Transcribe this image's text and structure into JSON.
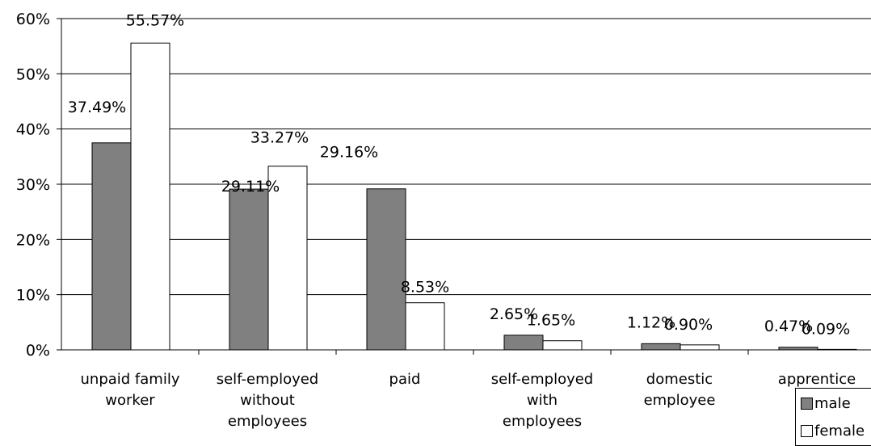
{
  "chart_data": {
    "type": "bar",
    "title": "",
    "xlabel": "",
    "ylabel": "",
    "ylim": [
      0,
      60
    ],
    "yticks": [
      "0%",
      "10%",
      "20%",
      "30%",
      "40%",
      "50%",
      "60%"
    ],
    "grid": true,
    "legend_position": "bottom-right",
    "categories": [
      [
        "unpaid family",
        "worker"
      ],
      [
        "self-employed",
        "without",
        "employees"
      ],
      [
        "paid"
      ],
      [
        "self-employed",
        "with",
        "employees"
      ],
      [
        "domestic",
        "employee"
      ],
      [
        "apprentice"
      ]
    ],
    "series": [
      {
        "name": "male",
        "color": "#808080",
        "values": [
          37.49,
          29.11,
          29.16,
          2.65,
          1.12,
          0.47
        ],
        "labels": [
          "37.49%",
          "29.11%",
          "29.16%",
          "2.65%",
          "1.12%",
          "0.47%"
        ]
      },
      {
        "name": "female",
        "color": "#ffffff",
        "values": [
          55.57,
          33.27,
          8.53,
          1.65,
          0.9,
          0.09
        ],
        "labels": [
          "55.57%",
          "33.27%",
          "8.53%",
          "1.65%",
          "0.90%",
          "0.09%"
        ]
      }
    ]
  }
}
